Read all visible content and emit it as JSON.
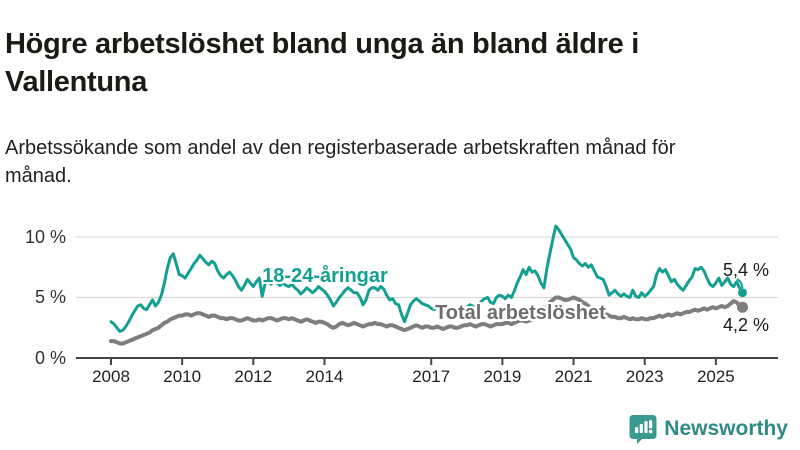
{
  "chart_data": {
    "type": "line",
    "title": "Högre arbetslöshet bland unga än bland äldre i Vallentuna",
    "subtitle": "Arbetssökande som andel av den registerbaserade arbetskraften månad för månad.",
    "unit": "%",
    "x_start": "2008-01",
    "x_end": "2025-10",
    "x_tick_labels": [
      "2008",
      "2010",
      "2012",
      "2014",
      "2017",
      "2019",
      "2021",
      "2023",
      "2025"
    ],
    "x_tick_years": [
      2008,
      2010,
      2012,
      2014,
      2017,
      2019,
      2021,
      2023,
      2025
    ],
    "y_axis": {
      "ticks": [
        {
          "value": 0,
          "label": "0 %"
        },
        {
          "value": 5,
          "label": "5 %"
        },
        {
          "value": 10,
          "label": "10 %"
        }
      ],
      "range": [
        0,
        11.5
      ]
    },
    "grid": "horizontal",
    "legend_position": "inline-annotations",
    "colors": {
      "youth": "#14a091",
      "total": "#7e7e7e",
      "grid": "#d9d9d9",
      "axis": "#454545"
    },
    "series": [
      {
        "name": "18-24-åringar",
        "color": "#14a091",
        "end_value_label": "5,4 %",
        "end_value": 5.4,
        "values": [
          3.0,
          2.8,
          2.5,
          2.2,
          2.3,
          2.6,
          3.0,
          3.5,
          3.9,
          4.3,
          4.4,
          4.1,
          4.0,
          4.4,
          4.8,
          4.3,
          4.6,
          5.2,
          6.2,
          7.4,
          8.3,
          8.6,
          7.8,
          6.9,
          6.8,
          6.6,
          7.0,
          7.4,
          7.8,
          8.1,
          8.5,
          8.2,
          7.9,
          7.7,
          8.0,
          7.8,
          7.2,
          6.8,
          6.6,
          6.9,
          7.1,
          6.8,
          6.4,
          5.9,
          5.6,
          6.0,
          6.5,
          6.2,
          5.9,
          6.3,
          6.6,
          5.1,
          6.2,
          6.4,
          6.1,
          6.4,
          6.2,
          6.0,
          6.2,
          6.0,
          5.9,
          6.1,
          5.8,
          5.6,
          5.3,
          5.5,
          5.8,
          5.6,
          5.4,
          5.6,
          5.9,
          5.7,
          5.5,
          5.2,
          4.8,
          4.3,
          4.6,
          5.0,
          5.3,
          5.6,
          5.8,
          5.6,
          5.4,
          5.4,
          5.0,
          4.4,
          4.8,
          5.6,
          5.8,
          5.8,
          5.6,
          5.9,
          5.7,
          5.2,
          4.8,
          4.9,
          4.5,
          4.4,
          3.6,
          3.0,
          3.7,
          4.4,
          4.7,
          4.9,
          4.7,
          4.5,
          4.4,
          4.3,
          4.1,
          4.0,
          4.2,
          4.0,
          3.8,
          3.9,
          4.1,
          4.0,
          3.9,
          3.8,
          4.0,
          4.1,
          4.2,
          4.4,
          4.3,
          4.1,
          4.4,
          4.7,
          4.9,
          5.0,
          4.6,
          4.5,
          5.0,
          5.2,
          5.1,
          4.9,
          5.2,
          5.0,
          5.5,
          6.2,
          6.7,
          7.3,
          6.9,
          7.5,
          7.1,
          7.2,
          6.8,
          6.2,
          5.8,
          7.4,
          8.6,
          9.8,
          10.9,
          10.6,
          10.2,
          9.8,
          9.4,
          9.0,
          8.3,
          8.1,
          7.8,
          7.6,
          7.8,
          7.5,
          7.7,
          7.2,
          6.7,
          6.6,
          6.5,
          5.9,
          5.2,
          5.4,
          5.6,
          5.3,
          5.1,
          5.3,
          5.1,
          5.0,
          5.6,
          5.1,
          5.0,
          5.4,
          5.1,
          5.3,
          5.6,
          5.9,
          6.9,
          7.4,
          7.1,
          7.3,
          6.8,
          6.3,
          6.5,
          6.1,
          5.8,
          5.6,
          6.0,
          6.4,
          6.7,
          7.4,
          7.3,
          7.5,
          7.2,
          6.6,
          6.1,
          5.9,
          6.2,
          6.6,
          6.0,
          6.3,
          6.6,
          6.1,
          5.9,
          6.3,
          5.8,
          5.4
        ]
      },
      {
        "name": "Total arbetslöshet",
        "color": "#7e7e7e",
        "end_value_label": "4,2 %",
        "end_value": 4.2,
        "values": [
          1.4,
          1.4,
          1.3,
          1.2,
          1.2,
          1.3,
          1.4,
          1.5,
          1.6,
          1.7,
          1.8,
          1.9,
          2.0,
          2.1,
          2.3,
          2.4,
          2.5,
          2.7,
          2.9,
          3.0,
          3.2,
          3.3,
          3.4,
          3.5,
          3.5,
          3.6,
          3.6,
          3.5,
          3.6,
          3.7,
          3.7,
          3.6,
          3.5,
          3.4,
          3.5,
          3.5,
          3.4,
          3.3,
          3.3,
          3.2,
          3.3,
          3.3,
          3.2,
          3.1,
          3.1,
          3.2,
          3.3,
          3.2,
          3.1,
          3.1,
          3.2,
          3.1,
          3.2,
          3.3,
          3.3,
          3.2,
          3.1,
          3.2,
          3.3,
          3.3,
          3.2,
          3.3,
          3.2,
          3.1,
          3.0,
          3.1,
          3.2,
          3.1,
          3.0,
          2.9,
          3.0,
          3.0,
          2.9,
          2.8,
          2.6,
          2.5,
          2.6,
          2.8,
          2.9,
          2.8,
          2.7,
          2.8,
          2.9,
          2.8,
          2.7,
          2.6,
          2.7,
          2.8,
          2.8,
          2.9,
          2.8,
          2.8,
          2.7,
          2.6,
          2.7,
          2.7,
          2.6,
          2.5,
          2.4,
          2.3,
          2.4,
          2.5,
          2.6,
          2.7,
          2.6,
          2.5,
          2.6,
          2.6,
          2.5,
          2.5,
          2.6,
          2.5,
          2.4,
          2.5,
          2.6,
          2.6,
          2.5,
          2.5,
          2.6,
          2.7,
          2.7,
          2.8,
          2.7,
          2.6,
          2.7,
          2.8,
          2.8,
          2.7,
          2.6,
          2.7,
          2.8,
          2.8,
          2.8,
          2.9,
          2.9,
          2.8,
          2.9,
          3.0,
          3.1,
          3.1,
          3.0,
          3.1,
          3.2,
          3.3,
          3.3,
          3.4,
          3.6,
          4.2,
          4.6,
          4.8,
          5.0,
          5.0,
          4.9,
          4.8,
          4.8,
          4.9,
          5.0,
          4.9,
          4.8,
          4.6,
          4.5,
          4.3,
          4.1,
          4.0,
          3.8,
          3.6,
          3.6,
          3.6,
          3.5,
          3.4,
          3.4,
          3.3,
          3.3,
          3.4,
          3.3,
          3.2,
          3.3,
          3.2,
          3.2,
          3.3,
          3.2,
          3.2,
          3.3,
          3.3,
          3.4,
          3.5,
          3.4,
          3.5,
          3.6,
          3.5,
          3.6,
          3.7,
          3.6,
          3.7,
          3.8,
          3.8,
          3.9,
          4.0,
          3.9,
          4.0,
          4.1,
          4.0,
          4.1,
          4.2,
          4.1,
          4.2,
          4.3,
          4.2,
          4.3,
          4.5,
          4.7,
          4.6,
          4.3,
          4.2
        ]
      }
    ]
  },
  "branding": {
    "name": "Newsworthy"
  }
}
